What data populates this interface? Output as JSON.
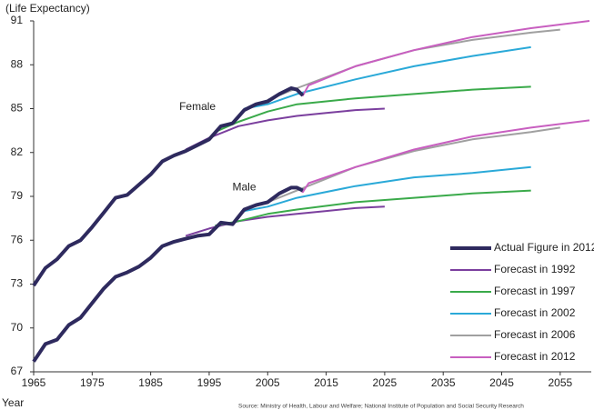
{
  "chart_data": {
    "type": "line",
    "y_label": "(Life Expectancy)",
    "x_label": "Year",
    "source": "Source: Ministry of Health, Labour and Welfare; National Institute of Population and Social Security Research",
    "annotations": [
      {
        "text": "Female",
        "x": 1993,
        "y": 85.1
      },
      {
        "text": "Male",
        "x": 2001,
        "y": 79.6
      }
    ],
    "xlim": [
      1965,
      2060
    ],
    "xticks": [
      1965,
      1975,
      1985,
      1995,
      2005,
      2015,
      2025,
      2035,
      2045,
      2055
    ],
    "ylim": [
      67,
      91
    ],
    "yticks": [
      67,
      70,
      73,
      76,
      79,
      82,
      85,
      88,
      91
    ],
    "grid": false,
    "legend": "lower right",
    "series": [
      {
        "name": "Forecast in 1992",
        "color": "#7b3f9e",
        "x": [
          1991,
          1995,
          2000,
          2005,
          2010,
          2015,
          2020,
          2025
        ],
        "female": [
          82.2,
          83.0,
          83.8,
          84.2,
          84.5,
          84.7,
          84.9,
          85.0
        ],
        "male": [
          76.3,
          76.8,
          77.3,
          77.6,
          77.8,
          78.0,
          78.2,
          78.3
        ]
      },
      {
        "name": "Forecast in 1997",
        "color": "#3aaa4a",
        "x": [
          1996,
          2000,
          2005,
          2010,
          2020,
          2030,
          2040,
          2050
        ],
        "female": [
          83.4,
          84.1,
          84.8,
          85.3,
          85.7,
          86.0,
          86.3,
          86.5
        ],
        "male": [
          77.0,
          77.3,
          77.8,
          78.1,
          78.6,
          78.9,
          79.2,
          79.4
        ]
      },
      {
        "name": "Forecast in 2002",
        "color": "#2aa9d8",
        "x": [
          2001,
          2005,
          2010,
          2020,
          2030,
          2040,
          2050
        ],
        "female": [
          85.0,
          85.3,
          86.0,
          87.0,
          87.9,
          88.6,
          89.2
        ],
        "male": [
          78.0,
          78.3,
          78.9,
          79.7,
          80.3,
          80.6,
          81.0
        ]
      },
      {
        "name": "Forecast in 2006",
        "color": "#a0a0a0",
        "x": [
          2005,
          2010,
          2020,
          2030,
          2040,
          2050,
          2055
        ],
        "female": [
          85.6,
          86.4,
          87.9,
          89.0,
          89.7,
          90.2,
          90.4
        ],
        "male": [
          78.6,
          79.4,
          81.0,
          82.1,
          82.9,
          83.4,
          83.7
        ]
      },
      {
        "name": "Forecast in 2012",
        "color": "#c85fc0",
        "x": [
          2010,
          2011,
          2012,
          2020,
          2030,
          2040,
          2050,
          2060
        ],
        "female": [
          86.3,
          85.9,
          86.6,
          87.9,
          89.0,
          89.9,
          90.5,
          91.0
        ],
        "male": [
          79.6,
          79.3,
          79.9,
          81.0,
          82.2,
          83.1,
          83.7,
          84.2
        ]
      },
      {
        "name": "Actual Figure in 2012",
        "color": "#2e2a5e",
        "x": [
          1965,
          1967,
          1969,
          1971,
          1973,
          1975,
          1977,
          1979,
          1981,
          1983,
          1985,
          1987,
          1989,
          1991,
          1993,
          1995,
          1997,
          1999,
          2001,
          2003,
          2005,
          2007,
          2009,
          2010,
          2011
        ],
        "female": [
          72.9,
          74.1,
          74.7,
          75.6,
          76.0,
          76.9,
          77.9,
          78.9,
          79.1,
          79.8,
          80.5,
          81.4,
          81.8,
          82.1,
          82.5,
          82.9,
          83.8,
          84.0,
          84.9,
          85.3,
          85.5,
          86.0,
          86.4,
          86.3,
          85.9
        ],
        "male": [
          67.7,
          68.9,
          69.2,
          70.2,
          70.7,
          71.7,
          72.7,
          73.5,
          73.8,
          74.2,
          74.8,
          75.6,
          75.9,
          76.1,
          76.3,
          76.4,
          77.2,
          77.1,
          78.1,
          78.4,
          78.6,
          79.2,
          79.6,
          79.6,
          79.4
        ]
      }
    ],
    "legend_order": [
      5,
      0,
      1,
      2,
      3,
      4
    ]
  }
}
